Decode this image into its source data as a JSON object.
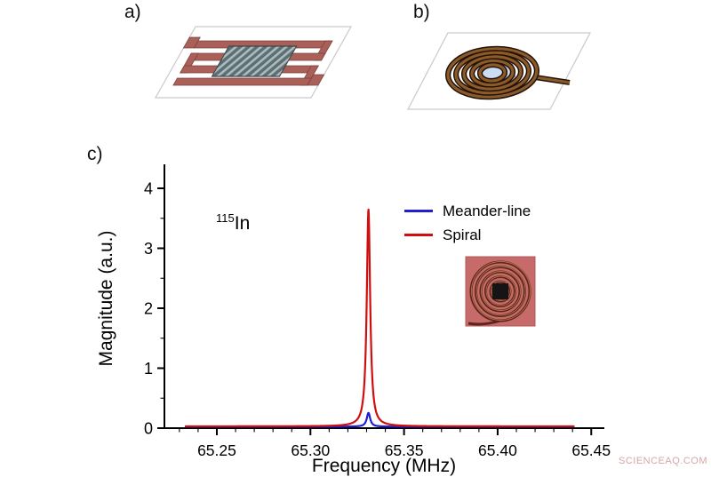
{
  "panels": {
    "a": {
      "label": "a)"
    },
    "b": {
      "label": "b)"
    },
    "c": {
      "label": "c)"
    }
  },
  "watermark": "SCIENCEAQ.COM",
  "illustration_colors": {
    "meander_trace": "#a86058",
    "plate_stroke": "#c9c9c9",
    "sample_fill": "#5f6e72",
    "sample_stripe": "#a9bcbf",
    "spiral_wire": "#8a5a28",
    "spiral_outline": "#241208",
    "spiral_sample": "#ccdcf2",
    "inset_board": "#c76a6a",
    "inset_coil": "#5f241c",
    "inset_chip": "#151515"
  },
  "chart_data": {
    "type": "line",
    "title": "",
    "xlabel": "Frequency (MHz)",
    "ylabel": "Magnitude (a.u.)",
    "xlim": [
      65.222,
      65.457
    ],
    "ylim": [
      0,
      4.4
    ],
    "grid": false,
    "legend_position": "upper right",
    "x_ticks": [
      {
        "v": 65.25,
        "label": "65.25"
      },
      {
        "v": 65.3,
        "label": "65.30"
      },
      {
        "v": 65.35,
        "label": "65.35"
      },
      {
        "v": 65.4,
        "label": "65.40"
      },
      {
        "v": 65.45,
        "label": "65.45"
      }
    ],
    "y_ticks": [
      {
        "v": 0,
        "label": "0"
      },
      {
        "v": 1,
        "label": "1"
      },
      {
        "v": 2,
        "label": "2"
      },
      {
        "v": 3,
        "label": "3"
      },
      {
        "v": 4,
        "label": "4"
      }
    ],
    "x_minor_step": 0.01,
    "y_minor_step": 0.5,
    "annotation": {
      "sup": "115",
      "text": "In"
    },
    "legend": [
      {
        "name": "Meander-line",
        "color": "#1f1fd1"
      },
      {
        "name": "Spiral",
        "color": "#cf0f0f"
      }
    ],
    "series": [
      {
        "name": "Meander-line",
        "color": "#1f1fd1",
        "x_start": 65.233,
        "x_end": 65.441,
        "baseline": 0.025,
        "peak": {
          "center": 65.331,
          "height": 0.23,
          "hwhm": 0.0011
        }
      },
      {
        "name": "Spiral",
        "color": "#cf0f0f",
        "x_start": 65.233,
        "x_end": 65.441,
        "baseline": 0.03,
        "peak": {
          "center": 65.331,
          "height": 3.62,
          "hwhm": 0.0011
        }
      }
    ]
  }
}
